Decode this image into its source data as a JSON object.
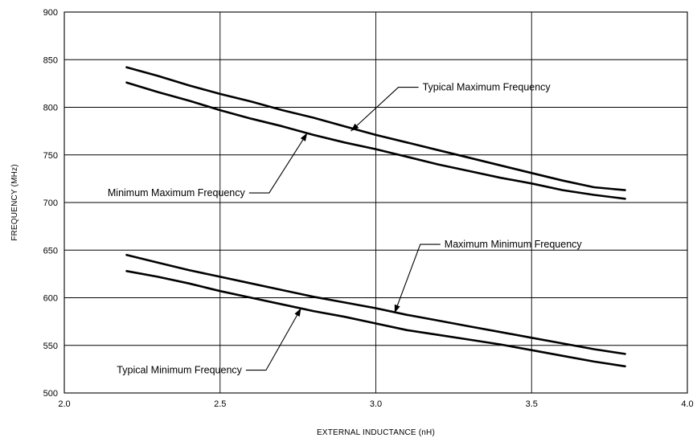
{
  "chart_data": {
    "type": "line",
    "title": "",
    "xlabel": "EXTERNAL INDUCTANCE (nH)",
    "ylabel": "FREQUENCY (MHz)",
    "xlim": [
      2.0,
      4.0
    ],
    "ylim": [
      500,
      900
    ],
    "xticks": [
      2.0,
      2.5,
      3.0,
      3.5,
      4.0
    ],
    "xtick_labels": [
      "2.0",
      "2.5",
      "3.0",
      "3.5",
      "4.0"
    ],
    "yticks": [
      500,
      550,
      600,
      650,
      700,
      750,
      800,
      850,
      900
    ],
    "ytick_labels": [
      "500",
      "550",
      "600",
      "650",
      "700",
      "750",
      "800",
      "850",
      "900"
    ],
    "grid": true,
    "series": [
      {
        "name": "Typical Maximum Frequency",
        "x": [
          2.2,
          2.3,
          2.4,
          2.5,
          2.6,
          2.7,
          2.8,
          2.9,
          3.0,
          3.1,
          3.2,
          3.3,
          3.4,
          3.5,
          3.6,
          3.7,
          3.8
        ],
        "y": [
          842,
          833,
          823,
          814,
          806,
          797,
          789,
          780,
          771,
          763,
          755,
          747,
          739,
          731,
          723,
          716,
          713
        ]
      },
      {
        "name": "Minimum Maximum Frequency",
        "x": [
          2.2,
          2.3,
          2.4,
          2.5,
          2.6,
          2.7,
          2.8,
          2.9,
          3.0,
          3.1,
          3.2,
          3.3,
          3.4,
          3.5,
          3.6,
          3.7,
          3.8
        ],
        "y": [
          826,
          816,
          807,
          797,
          788,
          780,
          771,
          763,
          756,
          748,
          740,
          733,
          726,
          720,
          713,
          708,
          704
        ]
      },
      {
        "name": "Maximum Minimum Frequency",
        "x": [
          2.2,
          2.3,
          2.4,
          2.5,
          2.6,
          2.7,
          2.8,
          2.9,
          3.0,
          3.1,
          3.2,
          3.3,
          3.4,
          3.5,
          3.6,
          3.7,
          3.8
        ],
        "y": [
          645,
          637,
          629,
          622,
          615,
          608,
          601,
          595,
          589,
          582,
          576,
          570,
          564,
          558,
          552,
          546,
          541
        ]
      },
      {
        "name": "Typical Minimum Frequency",
        "x": [
          2.2,
          2.3,
          2.4,
          2.5,
          2.6,
          2.7,
          2.8,
          2.9,
          3.0,
          3.1,
          3.2,
          3.3,
          3.4,
          3.5,
          3.6,
          3.7,
          3.8
        ],
        "y": [
          628,
          622,
          615,
          607,
          600,
          593,
          586,
          580,
          573,
          566,
          561,
          556,
          551,
          545,
          539,
          533,
          528
        ]
      }
    ],
    "annotations": [
      {
        "text": "Typical Maximum Frequency",
        "series": 0,
        "point": [
          2.92,
          775
        ],
        "label_at": [
          3.15,
          821
        ],
        "side": "right"
      },
      {
        "text": "Minimum Maximum Frequency",
        "series": 1,
        "point": [
          2.78,
          773
        ],
        "label_at": [
          2.58,
          710
        ],
        "side": "left"
      },
      {
        "text": "Maximum Minimum Frequency",
        "series": 2,
        "point": [
          3.06,
          584
        ],
        "label_at": [
          3.22,
          656
        ],
        "side": "right"
      },
      {
        "text": "Typical Minimum Frequency",
        "series": 3,
        "point": [
          2.76,
          589
        ],
        "label_at": [
          2.57,
          524
        ],
        "side": "left"
      }
    ]
  }
}
